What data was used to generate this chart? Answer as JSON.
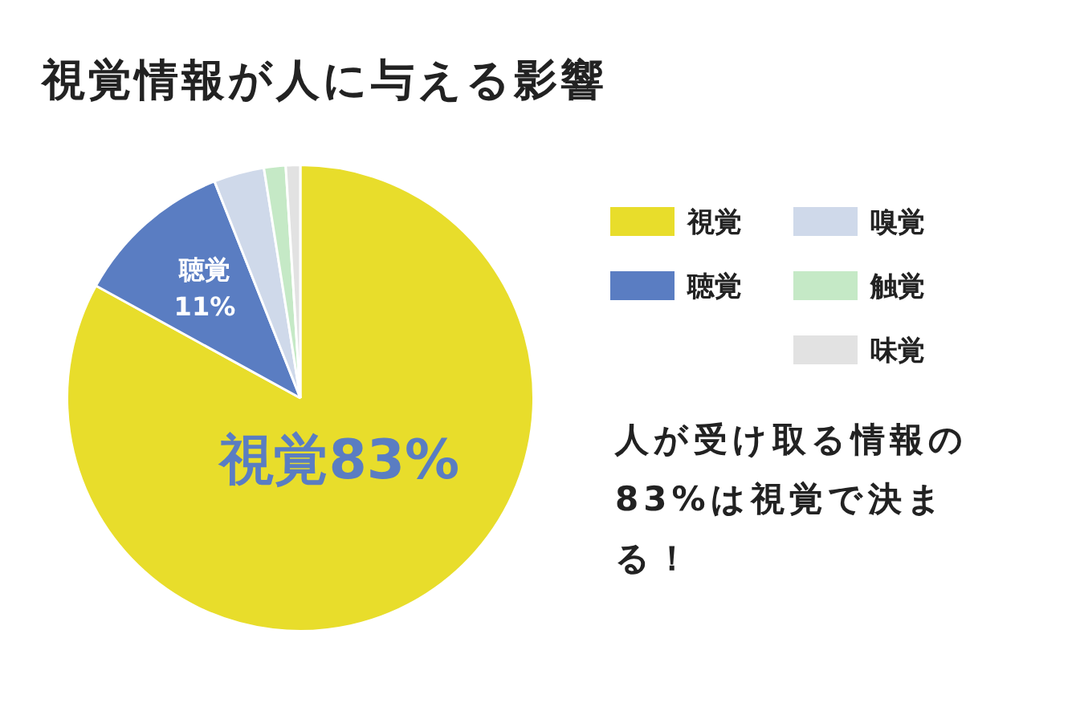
{
  "chart_data": {
    "type": "pie",
    "title": "視覚情報が人に与える影響",
    "categories": [
      "視覚",
      "聴覚",
      "嗅覚",
      "触覚",
      "味覚"
    ],
    "values": [
      83,
      11,
      3.5,
      1.5,
      1
    ],
    "colors": [
      "#e8dd2b",
      "#5a7dc2",
      "#cfd9ea",
      "#c5e9c6",
      "#e2e2e2"
    ],
    "value_labels": [
      "83%",
      "11%",
      null,
      null,
      null
    ],
    "legend": "right",
    "annotations": [
      "人が受け取る情報の83%は視覚で決まる！"
    ]
  }
}
